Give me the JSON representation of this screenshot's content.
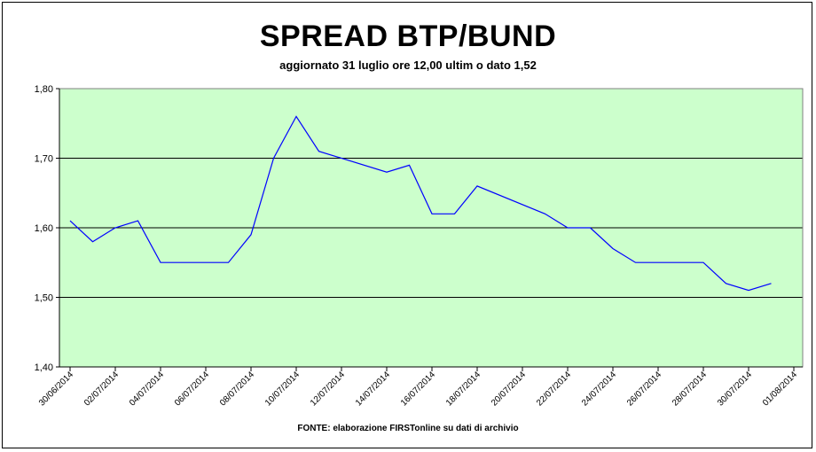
{
  "chart_data": {
    "type": "line",
    "title": "SPREAD BTP/BUND",
    "subtitle": "aggiornato 31 luglio ore 12,00 ultim o dato 1,52",
    "source": "FONTE: elaborazione FIRSTonline su dati di archivio",
    "ylim": [
      1.4,
      1.8
    ],
    "yticks": [
      "1,40",
      "1,50",
      "1,60",
      "1,70",
      "1,80"
    ],
    "xticks": [
      "30/06/2014",
      "02/07/2014",
      "04/07/2014",
      "06/07/2014",
      "08/07/2014",
      "10/07/2014",
      "12/07/2014",
      "14/07/2014",
      "16/07/2014",
      "18/07/2014",
      "20/07/2014",
      "22/07/2014",
      "24/07/2014",
      "26/07/2014",
      "28/07/2014",
      "30/07/2014",
      "01/08/2014"
    ],
    "grid": "horizontal",
    "background_color": "#ccffcc",
    "line_color": "#0000ff",
    "series": [
      {
        "x": [
          "30/06/2014",
          "01/07/2014",
          "02/07/2014",
          "03/07/2014",
          "04/07/2014",
          "07/07/2014",
          "08/07/2014",
          "09/07/2014",
          "10/07/2014",
          "11/07/2014",
          "14/07/2014",
          "15/07/2014",
          "16/07/2014",
          "17/07/2014",
          "18/07/2014",
          "21/07/2014",
          "22/07/2014",
          "23/07/2014",
          "24/07/2014",
          "25/07/2014",
          "28/07/2014",
          "29/07/2014",
          "30/07/2014",
          "31/07/2014"
        ],
        "values": [
          1.61,
          1.58,
          1.6,
          1.61,
          1.55,
          1.55,
          1.59,
          1.7,
          1.76,
          1.71,
          1.68,
          1.69,
          1.62,
          1.62,
          1.66,
          1.62,
          1.6,
          1.6,
          1.57,
          1.55,
          1.55,
          1.52,
          1.51,
          1.52
        ]
      }
    ]
  }
}
